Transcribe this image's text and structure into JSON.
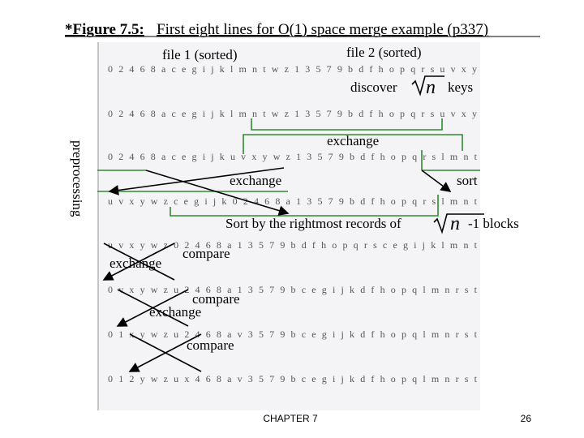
{
  "title": {
    "label": "*Figure 7.5:",
    "text": "First eight lines for O(1) space merge example (p337)"
  },
  "figure": {
    "rows": [
      "0 2 4 6 8 a c e g i j k l m n t w z 1 3 5 7 9 b d f h o p q r s u v x y",
      "0 2 4 6 8 a c e g i j k l m n t w z 1 3 5 7 9 b d f h o p q r s u v x y",
      "0 2 4 6 8 a c e g i j k u v x y w z 1 3 5 7 9 b d f h o p q r s l m n t",
      "u v x y w z c e g i j k 0 2 4 6 8 a 1 3 5 7 9 b d f h o p q r s l m n t",
      "u v x y w z 0 2 4 6 8 a 1 3 5 7 9 b d f h o p q r s c e g i j k l m n t",
      "0 v x y w z u 2 4 6 8 a 1 3 5 7 9 b c e g i j k d f h o p q l m n r s t",
      "0 1 x y w z u 2 4 6 8 a v 3 5 7 9 b c e g i j k d f h o p q l m n r s t",
      "0 1 2 y w z u x 4 6 8 a v 3 5 7 9 b c e g i j k d f h o p q l m n r s t"
    ],
    "annotations": {
      "file1": "file 1 (sorted)",
      "file2": "file 2 (sorted)",
      "discover": "discover",
      "sqrt_n": "n",
      "keys": "keys",
      "exchange1": "exchange",
      "preprocessing": "preprocessing",
      "exchange2": "exchange",
      "sort": "sort",
      "sort_rightmost": "Sort by the rightmost records of",
      "sqrt_n2": "n",
      "blocks": "-1 blocks",
      "exchange3": "exchange",
      "compare1": "compare",
      "compare2": "compare",
      "exchange4": "exchange",
      "compare3": "compare"
    }
  },
  "footer": {
    "chapter": "CHAPTER 7",
    "page": "26"
  }
}
